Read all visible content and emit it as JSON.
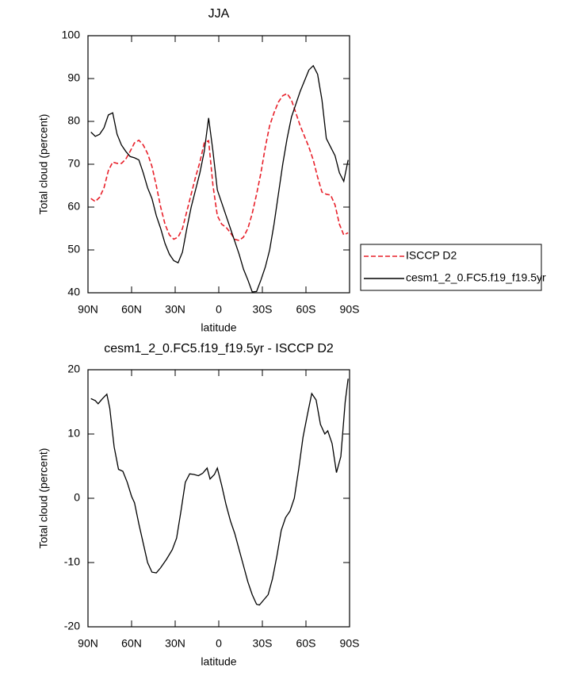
{
  "chart_data": [
    {
      "type": "line",
      "title": "JJA",
      "xlabel": "latitude",
      "ylabel": "Total cloud (percent)",
      "x": [
        88,
        85,
        82,
        79,
        76,
        73,
        70,
        67,
        64,
        61,
        58,
        55,
        52,
        49,
        46,
        43,
        40,
        37,
        34,
        31,
        28,
        25,
        22,
        19,
        16,
        13,
        10,
        7,
        4,
        1,
        -2,
        -5,
        -8,
        -11,
        -14,
        -17,
        -20,
        -23,
        -26,
        -29,
        -32,
        -35,
        -38,
        -41,
        -44,
        -47,
        -50,
        -53,
        -56,
        -59,
        -62,
        -65,
        -68,
        -71,
        -74,
        -77,
        -80,
        -83,
        -86,
        -89
      ],
      "series": [
        {
          "name": "ISCCP D2",
          "color": "#e8202a",
          "style": "dashed",
          "values": [
            62,
            61.3,
            62.3,
            64.5,
            68.5,
            70.5,
            70.2,
            70.2,
            71.2,
            73,
            75,
            75.6,
            74.5,
            72.5,
            69.5,
            65,
            60,
            56,
            53.5,
            52.5,
            53,
            55,
            59,
            63,
            67,
            70.5,
            75,
            75.5,
            65,
            58,
            56,
            55.3,
            54,
            52.5,
            52.2,
            53,
            55,
            58.5,
            63,
            68,
            74,
            79,
            82,
            84.5,
            86,
            86.5,
            85,
            82,
            79,
            76.5,
            74,
            71,
            67,
            63.5,
            63,
            62.8,
            60.5,
            56,
            53.5,
            54
          ]
        },
        {
          "name": "cesm1_2_0.FC5.f19_f19.5yr",
          "color": "#000000",
          "style": "solid",
          "values": [
            77.5,
            76.5,
            77,
            78.5,
            81.5,
            82,
            77,
            74.5,
            73,
            71.8,
            71.5,
            71,
            68,
            64.5,
            62,
            58,
            55,
            51.5,
            49,
            47.5,
            47,
            49.5,
            55,
            60,
            64,
            68,
            73,
            80.8,
            73,
            64,
            61,
            58,
            55,
            52,
            49,
            45.5,
            43,
            40.2,
            40.3,
            43,
            46,
            50,
            56,
            63,
            70,
            76,
            81,
            84,
            87,
            89.5,
            92,
            93,
            91,
            85,
            76,
            74,
            72,
            68,
            66,
            71
          ]
        }
      ],
      "xlim": [
        90,
        -90
      ],
      "xticks": [
        {
          "value": 90,
          "label": "90N"
        },
        {
          "value": 60,
          "label": "60N"
        },
        {
          "value": 30,
          "label": "30N"
        },
        0,
        {
          "value": -30,
          "label": "30S"
        },
        {
          "value": -60,
          "label": "60S"
        },
        {
          "value": -90,
          "label": "90S"
        }
      ],
      "ylim": [
        40,
        100
      ],
      "yticks": [
        40,
        50,
        60,
        70,
        80,
        90,
        100
      ],
      "legend": "right"
    },
    {
      "type": "line",
      "title": "cesm1_2_0.FC5.f19_f19.5yr - ISCCP D2",
      "xlabel": "latitude",
      "ylabel": "Total cloud (percent)",
      "x": [
        88,
        85,
        83,
        80,
        77,
        75,
        72,
        69,
        66,
        63,
        60,
        58,
        55,
        52,
        49,
        46,
        43,
        40,
        36,
        32,
        29,
        26,
        23,
        20,
        17,
        14,
        11,
        8,
        6,
        3,
        1,
        -2,
        -5,
        -8,
        -11,
        -14,
        -17,
        -20,
        -23,
        -26,
        -28,
        -31,
        -34,
        -37,
        -40,
        -43,
        -46,
        -49,
        -52,
        -55,
        -58,
        -61,
        -64,
        -67,
        -70,
        -73,
        -75,
        -78,
        -81,
        -84,
        -87,
        -89
      ],
      "values": [
        15.5,
        15.2,
        14.7,
        15.5,
        16.2,
        14,
        8,
        4.5,
        4.2,
        2.5,
        0.3,
        -0.7,
        -4,
        -7,
        -10,
        -11.5,
        -11.6,
        -10.8,
        -9.5,
        -8,
        -6.2,
        -2,
        2.5,
        3.8,
        3.7,
        3.5,
        3.9,
        4.7,
        3,
        3.7,
        4.7,
        2,
        -1,
        -3.5,
        -5.5,
        -8,
        -10.5,
        -13,
        -15,
        -16.5,
        -16.6,
        -15.8,
        -15,
        -12.5,
        -9,
        -5,
        -3,
        -2,
        0,
        4.5,
        9.5,
        13,
        16.3,
        15.3,
        11.5,
        10,
        10.5,
        8.5,
        4,
        6.5,
        15,
        18.6
      ],
      "color": "#000000",
      "xlim": [
        90,
        -90
      ],
      "xticks": [
        {
          "value": 90,
          "label": "90N"
        },
        {
          "value": 60,
          "label": "60N"
        },
        {
          "value": 30,
          "label": "30N"
        },
        0,
        {
          "value": -30,
          "label": "30S"
        },
        {
          "value": -60,
          "label": "60S"
        },
        {
          "value": -90,
          "label": "90S"
        }
      ],
      "ylim": [
        -20,
        20
      ],
      "yticks": [
        -20,
        -10,
        0,
        10,
        20
      ]
    }
  ]
}
